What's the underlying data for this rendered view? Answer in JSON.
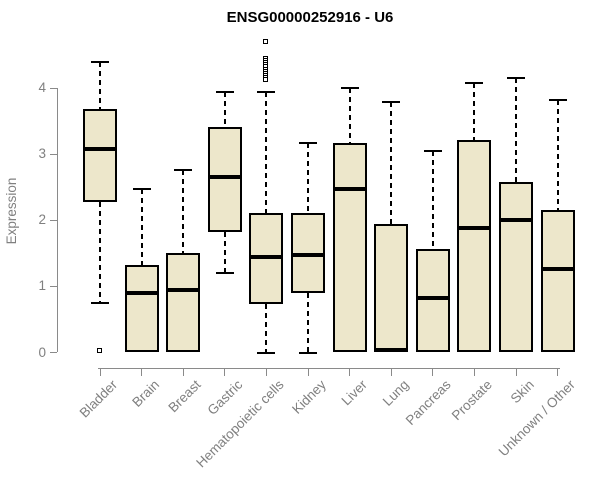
{
  "colors": {
    "background": "#FFFFFF",
    "box_fill": "#EDE7CB",
    "box_border": "#000000",
    "axis": "#8A8A8A",
    "tick_label": "#808080",
    "title": "#000000"
  },
  "chart_data": {
    "type": "boxplot",
    "title": "ENSG00000252916 - U6",
    "ylabel": "Expression",
    "xlabel": "",
    "ylim": [
      0,
      4.7
    ],
    "yticks": [
      0,
      1,
      2,
      3,
      4
    ],
    "grid": false,
    "legend": "none",
    "categories": [
      "Bladder",
      "Brain",
      "Breast",
      "Gastric",
      "Hematopoietic cells",
      "Kidney",
      "Liver",
      "Lung",
      "Pancreas",
      "Prostate",
      "Skin",
      "Unknown / Other"
    ],
    "series": [
      {
        "name": "Bladder",
        "whisker_low": 0.75,
        "q1": 2.28,
        "median": 3.08,
        "q3": 3.68,
        "whisker_high": 4.4,
        "outliers": [
          0.02
        ]
      },
      {
        "name": "Brain",
        "whisker_low": 0,
        "q1": 0,
        "median": 0.9,
        "q3": 1.32,
        "whisker_high": 2.47,
        "outliers": []
      },
      {
        "name": "Breast",
        "whisker_low": 0,
        "q1": 0,
        "median": 0.95,
        "q3": 1.5,
        "whisker_high": 2.76,
        "outliers": []
      },
      {
        "name": "Gastric",
        "whisker_low": 1.2,
        "q1": 1.82,
        "median": 2.65,
        "q3": 3.42,
        "whisker_high": 3.94,
        "outliers": []
      },
      {
        "name": "Hematopoietic cells",
        "whisker_low": 0,
        "q1": 0.73,
        "median": 1.44,
        "q3": 2.11,
        "whisker_high": 3.94,
        "outliers": [
          4.7,
          4.45,
          4.42,
          4.38,
          4.35,
          4.32,
          4.28,
          4.25,
          4.22,
          4.18,
          4.15,
          4.12
        ]
      },
      {
        "name": "Kidney",
        "whisker_low": 0,
        "q1": 0.9,
        "median": 1.47,
        "q3": 2.11,
        "whisker_high": 3.17,
        "outliers": []
      },
      {
        "name": "Liver",
        "whisker_low": 0,
        "q1": 0,
        "median": 2.48,
        "q3": 3.17,
        "whisker_high": 4.0,
        "outliers": []
      },
      {
        "name": "Lung",
        "whisker_low": 0,
        "q1": 0,
        "median": 0.04,
        "q3": 1.95,
        "whisker_high": 3.8,
        "outliers": []
      },
      {
        "name": "Pancreas",
        "whisker_low": 0,
        "q1": 0,
        "median": 0.83,
        "q3": 1.56,
        "whisker_high": 3.05,
        "outliers": []
      },
      {
        "name": "Prostate",
        "whisker_low": 0,
        "q1": 0,
        "median": 1.89,
        "q3": 3.22,
        "whisker_high": 4.08,
        "outliers": []
      },
      {
        "name": "Skin",
        "whisker_low": 0,
        "q1": 0,
        "median": 2.01,
        "q3": 2.58,
        "whisker_high": 4.16,
        "outliers": []
      },
      {
        "name": "Unknown / Other",
        "whisker_low": 0,
        "q1": 0,
        "median": 1.26,
        "q3": 2.16,
        "whisker_high": 3.82,
        "outliers": []
      }
    ]
  }
}
